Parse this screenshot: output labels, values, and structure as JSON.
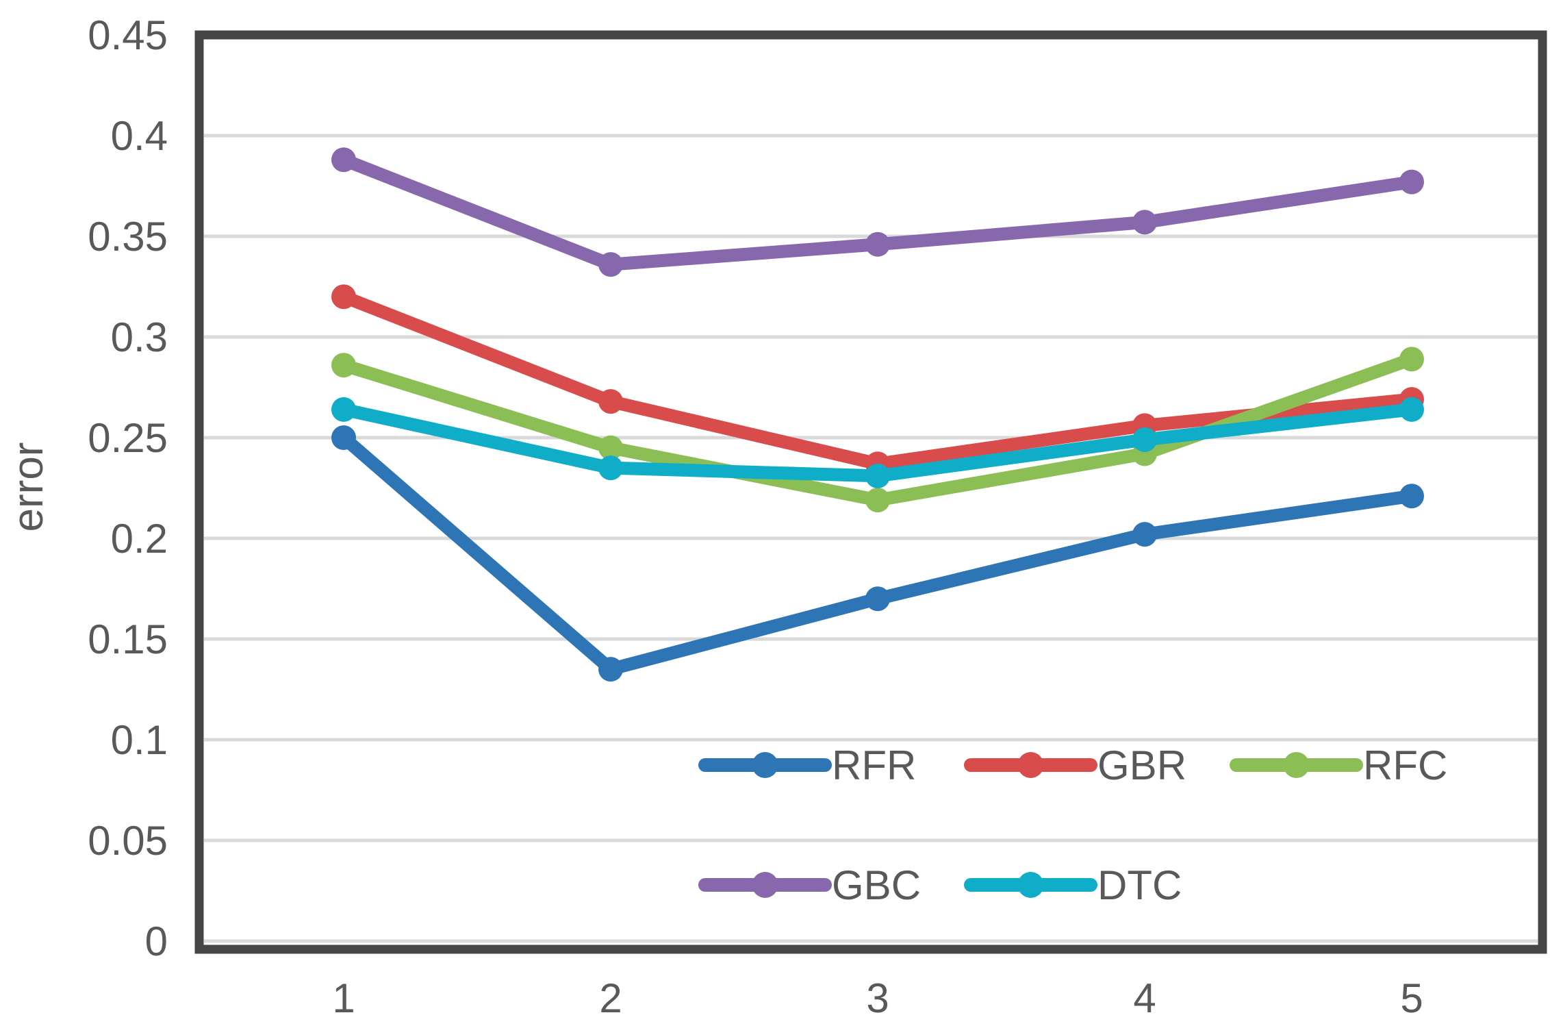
{
  "chart_data": {
    "type": "line",
    "title": "",
    "xlabel": "",
    "ylabel": "error",
    "x": [
      1,
      2,
      3,
      4,
      5
    ],
    "x_tick_labels": [
      "1",
      "2",
      "3",
      "4",
      "5"
    ],
    "y_tick_labels": [
      "0",
      "0.05",
      "0.1",
      "0.15",
      "0.2",
      "0.25",
      "0.3",
      "0.35",
      "0.4",
      "0.45"
    ],
    "ylim": [
      0,
      0.45
    ],
    "y_gridline_step": 0.05,
    "grid": "horizontal",
    "legend_position": "inside-bottom-right-two-rows",
    "legend_row1": [
      "RFR",
      "GBR",
      "RFC"
    ],
    "legend_row2": [
      "GBC",
      "DTC"
    ],
    "series": [
      {
        "name": "RFR",
        "color": "#2E75B6",
        "values": [
          0.25,
          0.135,
          0.17,
          0.202,
          0.221
        ]
      },
      {
        "name": "GBR",
        "color": "#D94C4C",
        "values": [
          0.32,
          0.268,
          0.237,
          0.256,
          0.269
        ]
      },
      {
        "name": "RFC",
        "color": "#8CBE56",
        "values": [
          0.286,
          0.245,
          0.219,
          0.242,
          0.289
        ]
      },
      {
        "name": "GBC",
        "color": "#8868AC",
        "values": [
          0.388,
          0.336,
          0.346,
          0.357,
          0.377
        ]
      },
      {
        "name": "DTC",
        "color": "#10ADC9",
        "values": [
          0.264,
          0.235,
          0.231,
          0.249,
          0.264
        ]
      }
    ],
    "colors": {
      "gridline": "#D9D9D9",
      "axis_border": "#454545",
      "text": "#595959",
      "background": "#FFFFFF"
    }
  }
}
